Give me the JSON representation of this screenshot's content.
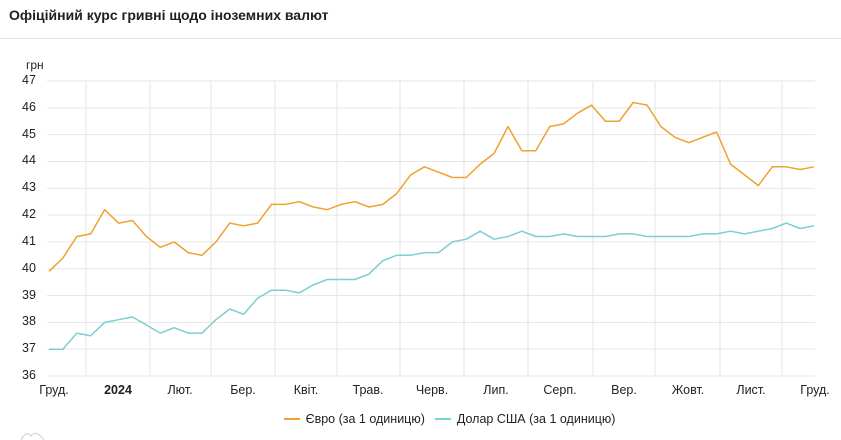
{
  "header": {
    "title": "Офіційний курс гривні щодо іноземних валют"
  },
  "colors": {
    "euro": "#f0a12e",
    "usd": "#7ccfd1",
    "grid": "#e6e6e6"
  },
  "chart_data": {
    "type": "line",
    "title": "Офіційний курс гривні щодо іноземних валют",
    "xlabel": "",
    "ylabel": "грн",
    "ylim": [
      36,
      47
    ],
    "yticks": [
      36,
      37,
      38,
      39,
      40,
      41,
      42,
      43,
      44,
      45,
      46,
      47
    ],
    "x_tick_labels": [
      "Груд.",
      "2024",
      "Лют.",
      "Бер.",
      "Квіт.",
      "Трав.",
      "Черв.",
      "Лип.",
      "Серп.",
      "Вер.",
      "Жовт.",
      "Лист.",
      "Груд."
    ],
    "grid": true,
    "legend_position": "bottom",
    "x": [
      "2023-12-01",
      "2023-12-08",
      "2023-12-15",
      "2023-12-22",
      "2023-12-29",
      "2024-01-05",
      "2024-01-12",
      "2024-01-19",
      "2024-01-26",
      "2024-02-02",
      "2024-02-09",
      "2024-02-16",
      "2024-02-23",
      "2024-03-01",
      "2024-03-08",
      "2024-03-15",
      "2024-03-22",
      "2024-03-29",
      "2024-04-05",
      "2024-04-12",
      "2024-04-19",
      "2024-04-26",
      "2024-05-03",
      "2024-05-10",
      "2024-05-17",
      "2024-05-24",
      "2024-05-31",
      "2024-06-07",
      "2024-06-14",
      "2024-06-21",
      "2024-06-28",
      "2024-07-05",
      "2024-07-12",
      "2024-07-19",
      "2024-07-26",
      "2024-08-02",
      "2024-08-09",
      "2024-08-16",
      "2024-08-23",
      "2024-08-30",
      "2024-09-06",
      "2024-09-13",
      "2024-09-20",
      "2024-09-27",
      "2024-10-04",
      "2024-10-11",
      "2024-10-18",
      "2024-10-25",
      "2024-11-01",
      "2024-11-08",
      "2024-11-15",
      "2024-11-22",
      "2024-11-29",
      "2024-12-06",
      "2024-12-13",
      "2024-12-20"
    ],
    "series": [
      {
        "name": "Євро (за 1 одиницю)",
        "color": "#f0a12e",
        "values": [
          39.9,
          40.4,
          41.2,
          41.3,
          42.2,
          41.7,
          41.8,
          41.2,
          40.8,
          41.0,
          40.6,
          40.5,
          41.0,
          41.7,
          41.6,
          41.7,
          42.4,
          42.4,
          42.5,
          42.3,
          42.2,
          42.4,
          42.5,
          42.3,
          42.4,
          42.8,
          43.5,
          43.8,
          43.6,
          43.4,
          43.4,
          43.9,
          44.3,
          45.3,
          44.4,
          44.4,
          45.3,
          45.4,
          45.8,
          46.1,
          45.5,
          45.5,
          46.2,
          46.1,
          45.3,
          44.9,
          44.7,
          44.9,
          45.1,
          43.9,
          43.5,
          43.1,
          43.8,
          43.8,
          43.7,
          43.8
        ]
      },
      {
        "name": "Долар США (за 1 одиницю)",
        "color": "#7ccfd1",
        "values": [
          37.0,
          37.0,
          37.6,
          37.5,
          38.0,
          38.1,
          38.2,
          37.9,
          37.6,
          37.8,
          37.6,
          37.6,
          38.1,
          38.5,
          38.3,
          38.9,
          39.2,
          39.2,
          39.1,
          39.4,
          39.6,
          39.6,
          39.6,
          39.8,
          40.3,
          40.5,
          40.5,
          40.6,
          40.6,
          41.0,
          41.1,
          41.4,
          41.1,
          41.2,
          41.4,
          41.2,
          41.2,
          41.3,
          41.2,
          41.2,
          41.2,
          41.3,
          41.3,
          41.2,
          41.2,
          41.2,
          41.2,
          41.3,
          41.3,
          41.4,
          41.3,
          41.4,
          41.5,
          41.7,
          41.5,
          41.6
        ]
      }
    ]
  },
  "legend": {
    "items": [
      {
        "label": "Євро (за 1 одиницю)",
        "color": "#f0a12e"
      },
      {
        "label": "Долар США (за 1 одиницю)",
        "color": "#7ccfd1"
      }
    ]
  }
}
